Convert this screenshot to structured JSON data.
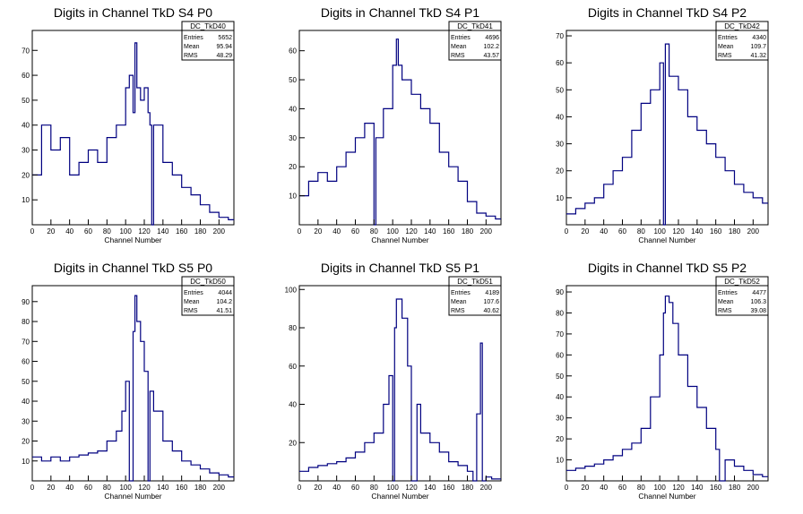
{
  "chart_data": [
    {
      "type": "histogram",
      "title": "Digits in Channel TkD S4 P0",
      "xlabel": "Channel Number",
      "ylabel": "",
      "xlim": [
        0,
        216
      ],
      "ylim": [
        0,
        78
      ],
      "xticks": [
        0,
        20,
        40,
        60,
        80,
        100,
        120,
        140,
        160,
        180,
        200
      ],
      "yticks": [
        10,
        20,
        30,
        40,
        50,
        60,
        70
      ],
      "stats": {
        "name": "DC_TkD40",
        "entries_label": "Entries",
        "entries": "5652",
        "mean_label": "Mean",
        "mean": "95.94",
        "rms_label": "RMS",
        "rms": "48.29"
      },
      "bins_x": [
        0,
        10,
        20,
        30,
        40,
        50,
        60,
        70,
        80,
        90,
        100,
        104,
        108,
        110,
        112,
        116,
        120,
        124,
        126,
        128,
        130,
        140,
        150,
        160,
        170,
        180,
        190,
        200,
        210,
        216
      ],
      "bins_y": [
        20,
        40,
        30,
        35,
        20,
        25,
        30,
        25,
        35,
        40,
        55,
        60,
        45,
        73,
        55,
        50,
        55,
        45,
        40,
        0,
        40,
        25,
        20,
        15,
        12,
        8,
        5,
        3,
        2,
        2
      ]
    },
    {
      "type": "histogram",
      "title": "Digits in Channel TkD S4 P1",
      "xlabel": "Channel Number",
      "ylabel": "",
      "xlim": [
        0,
        216
      ],
      "ylim": [
        0,
        67
      ],
      "xticks": [
        0,
        20,
        40,
        60,
        80,
        100,
        120,
        140,
        160,
        180,
        200
      ],
      "yticks": [
        10,
        20,
        30,
        40,
        50,
        60
      ],
      "stats": {
        "name": "DC_TkD41",
        "entries_label": "Entries",
        "entries": "4696",
        "mean_label": "Mean",
        "mean": "102.2",
        "rms_label": "RMS",
        "rms": "43.57"
      },
      "bins_x": [
        0,
        10,
        20,
        30,
        40,
        50,
        60,
        70,
        80,
        82,
        90,
        100,
        104,
        106,
        110,
        120,
        130,
        140,
        150,
        160,
        170,
        180,
        190,
        200,
        210,
        216
      ],
      "bins_y": [
        10,
        15,
        18,
        15,
        20,
        25,
        30,
        35,
        0,
        30,
        40,
        55,
        64,
        55,
        50,
        45,
        40,
        35,
        25,
        20,
        15,
        8,
        4,
        3,
        2,
        2
      ]
    },
    {
      "type": "histogram",
      "title": "Digits in Channel TkD S4 P2",
      "xlabel": "Channel Number",
      "ylabel": "",
      "xlim": [
        0,
        216
      ],
      "ylim": [
        0,
        72
      ],
      "xticks": [
        0,
        20,
        40,
        60,
        80,
        100,
        120,
        140,
        160,
        180,
        200
      ],
      "yticks": [
        10,
        20,
        30,
        40,
        50,
        60,
        70
      ],
      "stats": {
        "name": "DC_TkD42",
        "entries_label": "Entries",
        "entries": "4340",
        "mean_label": "Mean",
        "mean": "109.7",
        "rms_label": "RMS",
        "rms": "41.32"
      },
      "bins_x": [
        0,
        10,
        20,
        30,
        40,
        50,
        60,
        70,
        80,
        90,
        100,
        104,
        106,
        110,
        120,
        130,
        140,
        150,
        160,
        170,
        180,
        190,
        200,
        210,
        216
      ],
      "bins_y": [
        4,
        6,
        8,
        10,
        15,
        20,
        25,
        35,
        45,
        50,
        60,
        0,
        67,
        55,
        50,
        40,
        35,
        30,
        25,
        20,
        15,
        12,
        10,
        8,
        8
      ]
    },
    {
      "type": "histogram",
      "title": "Digits in Channel TkD S5 P0",
      "xlabel": "Channel Number",
      "ylabel": "",
      "xlim": [
        0,
        216
      ],
      "ylim": [
        0,
        98
      ],
      "xticks": [
        0,
        20,
        40,
        60,
        80,
        100,
        120,
        140,
        160,
        180,
        200
      ],
      "yticks": [
        10,
        20,
        30,
        40,
        50,
        60,
        70,
        80,
        90
      ],
      "stats": {
        "name": "DC_TkD50",
        "entries_label": "Entries",
        "entries": "4044",
        "mean_label": "Mean",
        "mean": "104.2",
        "rms_label": "RMS",
        "rms": "41.51"
      },
      "bins_x": [
        0,
        10,
        20,
        30,
        40,
        50,
        60,
        70,
        80,
        90,
        96,
        100,
        104,
        108,
        110,
        112,
        116,
        120,
        124,
        126,
        130,
        140,
        150,
        160,
        170,
        180,
        190,
        200,
        210,
        216
      ],
      "bins_y": [
        12,
        10,
        12,
        10,
        12,
        13,
        14,
        15,
        20,
        25,
        35,
        50,
        0,
        75,
        93,
        80,
        70,
        55,
        0,
        45,
        35,
        20,
        15,
        10,
        8,
        6,
        4,
        3,
        2,
        2
      ]
    },
    {
      "type": "histogram",
      "title": "Digits in Channel TkD S5 P1",
      "xlabel": "Channel Number",
      "ylabel": "",
      "xlim": [
        0,
        216
      ],
      "ylim": [
        0,
        102
      ],
      "xticks": [
        0,
        20,
        40,
        60,
        80,
        100,
        120,
        140,
        160,
        180,
        200
      ],
      "yticks": [
        20,
        40,
        60,
        80,
        100
      ],
      "stats": {
        "name": "DC_TkD51",
        "entries_label": "Entries",
        "entries": "4189",
        "mean_label": "Mean",
        "mean": "107.6",
        "rms_label": "RMS",
        "rms": "40.62"
      },
      "bins_x": [
        0,
        10,
        20,
        30,
        40,
        50,
        60,
        70,
        80,
        90,
        96,
        100,
        102,
        104,
        110,
        116,
        120,
        126,
        130,
        140,
        150,
        160,
        170,
        180,
        186,
        190,
        194,
        196,
        200,
        206,
        216
      ],
      "bins_y": [
        5,
        7,
        8,
        9,
        10,
        12,
        15,
        20,
        25,
        40,
        55,
        0,
        80,
        95,
        85,
        60,
        0,
        40,
        25,
        20,
        15,
        10,
        8,
        5,
        0,
        35,
        72,
        0,
        2,
        1,
        1
      ]
    },
    {
      "type": "histogram",
      "title": "Digits in Channel TkD S5 P2",
      "xlabel": "Channel Number",
      "ylabel": "",
      "xlim": [
        0,
        216
      ],
      "ylim": [
        0,
        93
      ],
      "xticks": [
        0,
        20,
        40,
        60,
        80,
        100,
        120,
        140,
        160,
        180,
        200
      ],
      "yticks": [
        10,
        20,
        30,
        40,
        50,
        60,
        70,
        80,
        90
      ],
      "stats": {
        "name": "DC_TkD52",
        "entries_label": "Entries",
        "entries": "4477",
        "mean_label": "Mean",
        "mean": "106.3",
        "rms_label": "RMS",
        "rms": "39.08"
      },
      "bins_x": [
        0,
        10,
        20,
        30,
        40,
        50,
        60,
        70,
        80,
        90,
        100,
        104,
        106,
        110,
        114,
        120,
        130,
        140,
        150,
        160,
        164,
        170,
        180,
        190,
        200,
        210,
        216
      ],
      "bins_y": [
        5,
        6,
        7,
        8,
        10,
        12,
        15,
        18,
        25,
        40,
        60,
        80,
        88,
        85,
        75,
        60,
        45,
        35,
        25,
        15,
        0,
        10,
        7,
        5,
        3,
        2,
        2
      ]
    }
  ],
  "colors": {
    "line": "#000080",
    "axis": "#000000",
    "background": "#ffffff"
  }
}
